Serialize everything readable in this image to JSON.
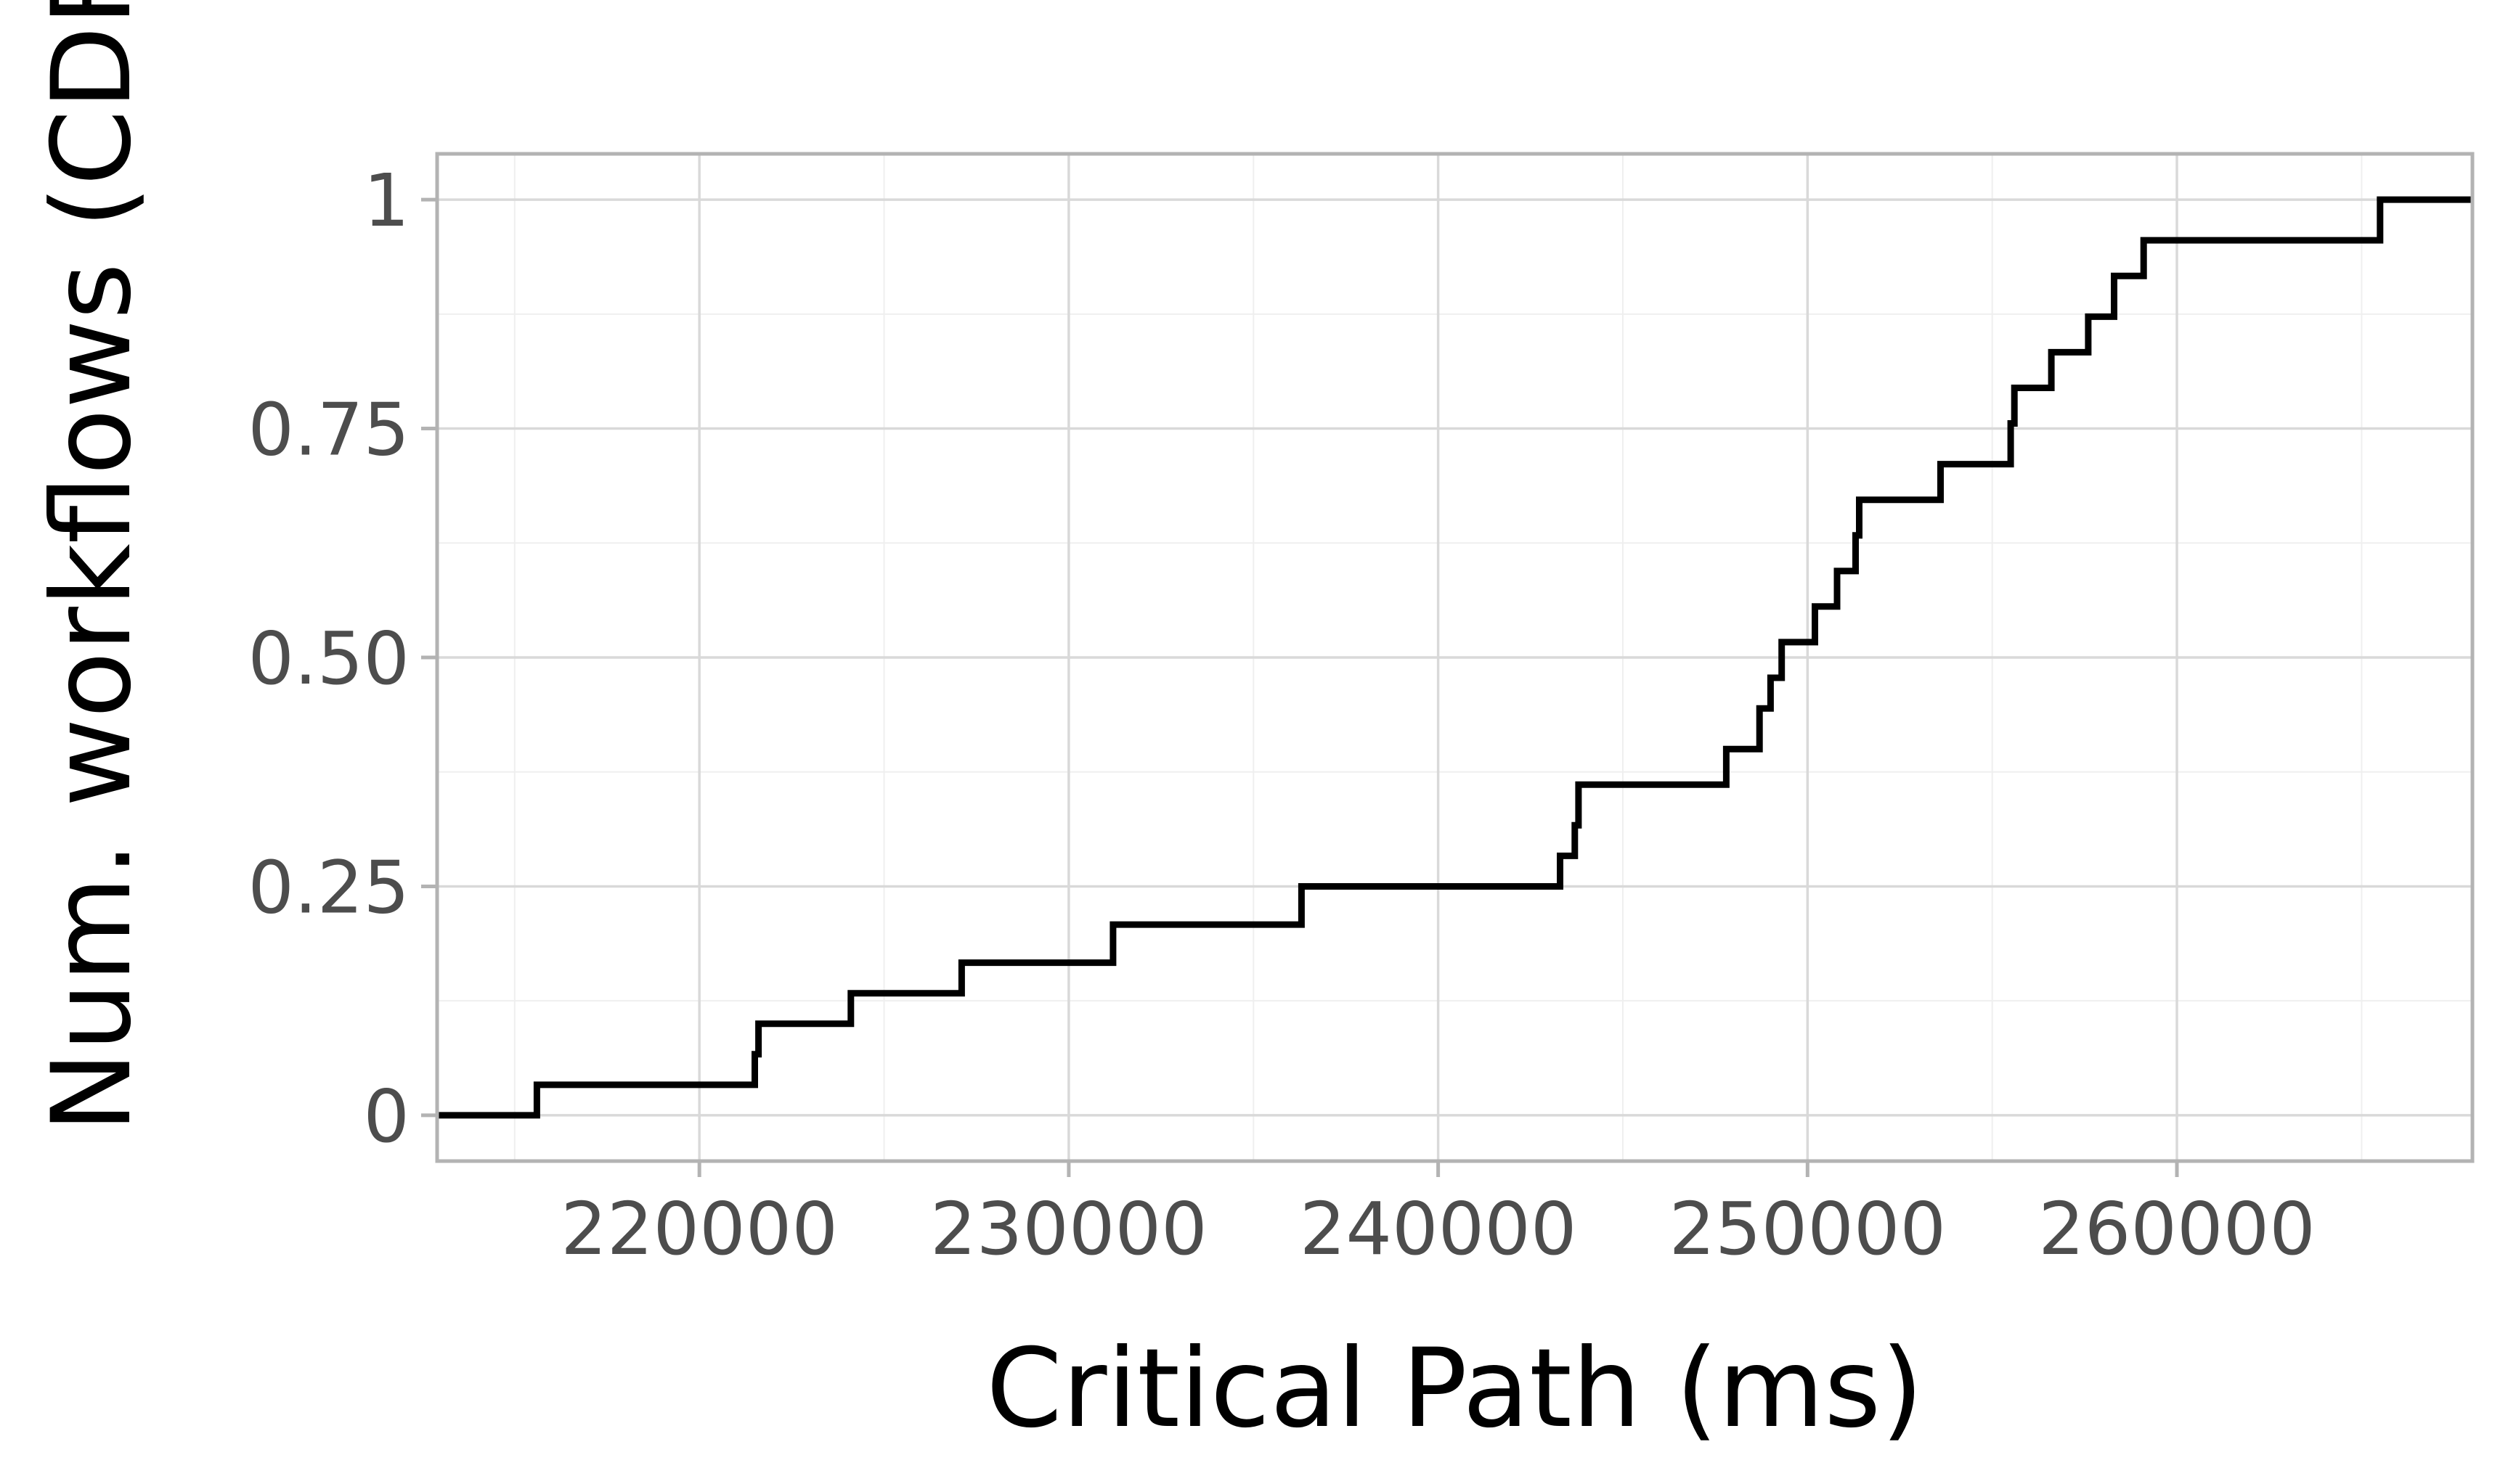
{
  "chart_data": {
    "type": "line",
    "title": "",
    "xlabel": "Critical Path (ms)",
    "ylabel": "Num. workflows (CDF)",
    "xlim": [
      212900,
      268000
    ],
    "ylim": [
      -0.05,
      1.05
    ],
    "x_ticks": [
      220000,
      230000,
      240000,
      250000,
      260000
    ],
    "x_tick_labels": [
      "220000",
      "230000",
      "240000",
      "250000",
      "260000"
    ],
    "y_ticks": [
      0,
      0.25,
      0.5,
      0.75,
      1
    ],
    "y_tick_labels": [
      "0",
      "0.25",
      "0.50",
      "0.75",
      "1"
    ],
    "grid": true,
    "legend": "none",
    "line_color": "#000000",
    "step": true,
    "series": [
      {
        "x": [
          212900,
          215600,
          221500,
          221600,
          224100,
          227100,
          231200,
          236300,
          243300,
          243700,
          243800,
          247800,
          248700,
          249000,
          249300,
          250200,
          250800,
          251300,
          251400,
          253600,
          255500,
          255600,
          256600,
          257600,
          258300,
          259100,
          265500,
          268000
        ],
        "y": [
          0.0,
          0.0333,
          0.0667,
          0.1,
          0.1333,
          0.1667,
          0.2083,
          0.25,
          0.2833,
          0.3167,
          0.3611,
          0.4,
          0.4444,
          0.4778,
          0.5167,
          0.5556,
          0.5944,
          0.6333,
          0.6722,
          0.7111,
          0.7556,
          0.7944,
          0.8333,
          0.8722,
          0.9167,
          0.9556,
          1.0,
          1.0
        ]
      }
    ]
  }
}
